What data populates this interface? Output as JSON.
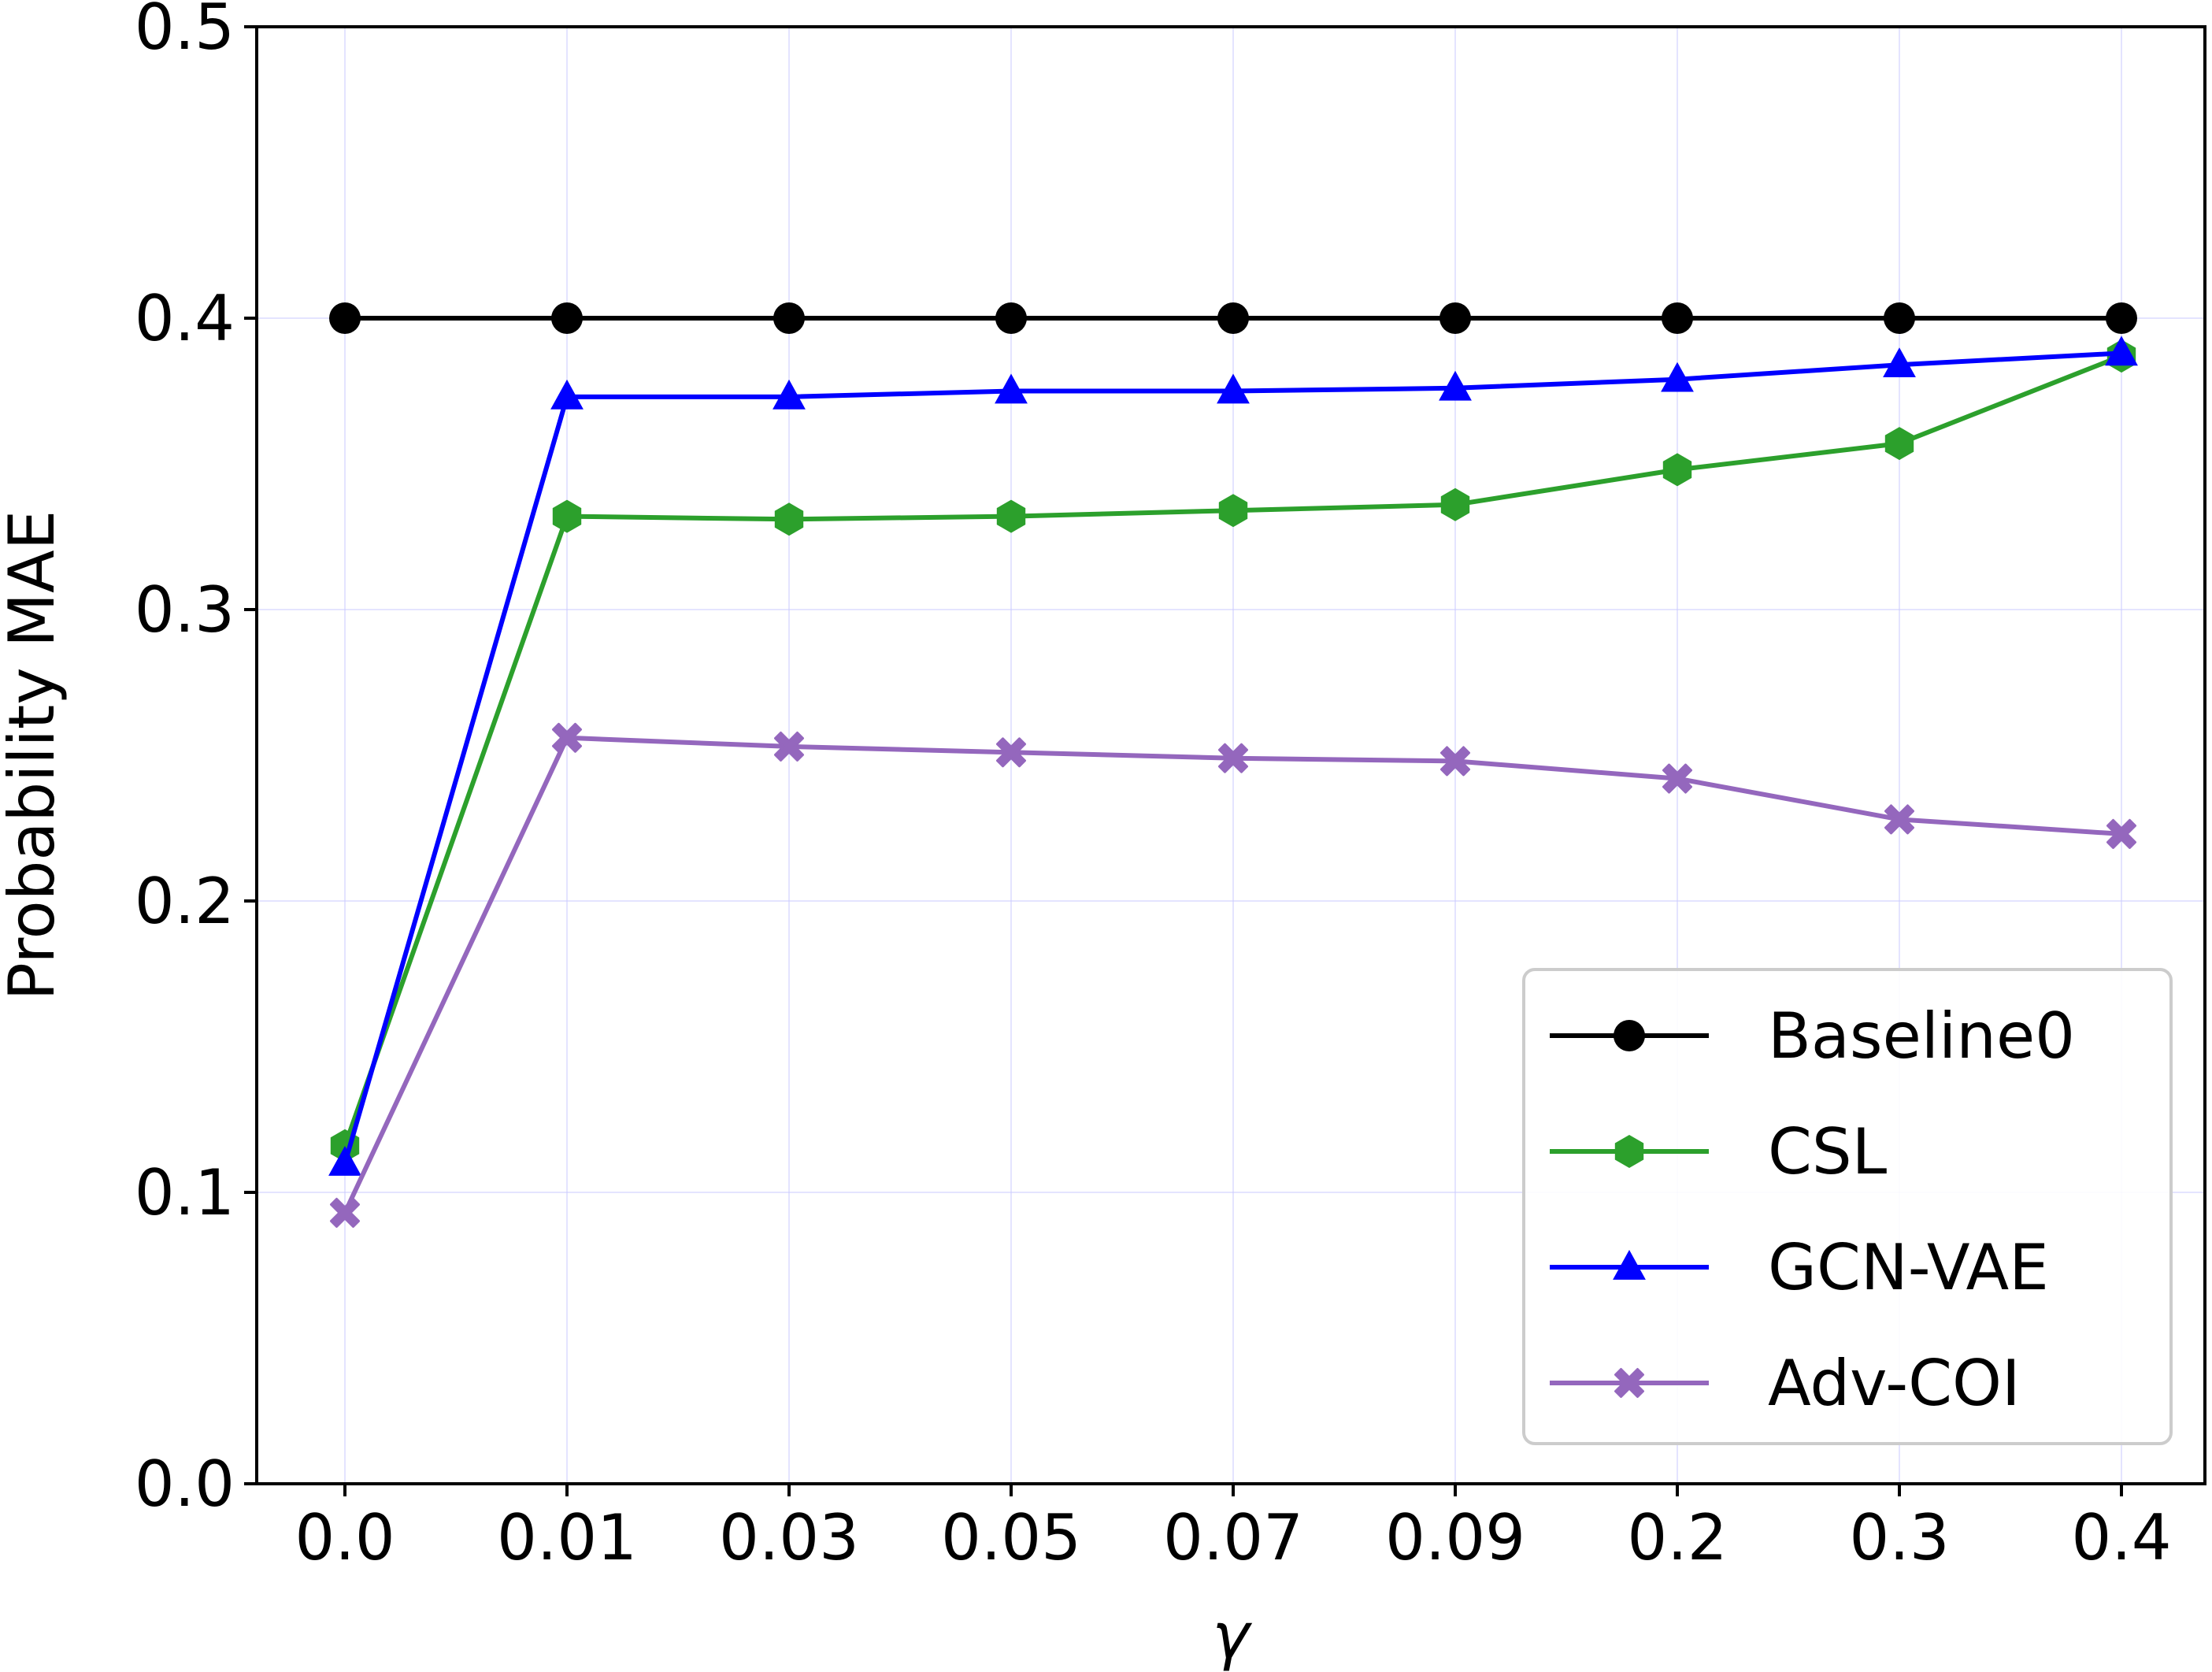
{
  "chart_data": {
    "type": "line",
    "title": "",
    "xlabel": "γ",
    "ylabel": "Probability MAE",
    "categories": [
      "0.0",
      "0.01",
      "0.03",
      "0.05",
      "0.07",
      "0.09",
      "0.2",
      "0.3",
      "0.4"
    ],
    "ylim": [
      0.0,
      0.5
    ],
    "yticks": [
      "0.0",
      "0.1",
      "0.2",
      "0.3",
      "0.4",
      "0.5"
    ],
    "grid": true,
    "legend_position": "lower-right",
    "series": [
      {
        "name": "Baseline0",
        "color": "#000000",
        "marker": "circle",
        "values": [
          0.4,
          0.4,
          0.4,
          0.4,
          0.4,
          0.4,
          0.4,
          0.4,
          0.4
        ]
      },
      {
        "name": "CSL",
        "color": "#2ca02c",
        "marker": "hexagon",
        "values": [
          0.116,
          0.332,
          0.331,
          0.332,
          0.334,
          0.336,
          0.348,
          0.357,
          0.387
        ]
      },
      {
        "name": "GCN-VAE",
        "color": "#0000ff",
        "marker": "triangle",
        "values": [
          0.11,
          0.373,
          0.373,
          0.375,
          0.375,
          0.376,
          0.379,
          0.384,
          0.388
        ]
      },
      {
        "name": "Adv-COI",
        "color": "#9467bd",
        "marker": "x-filled",
        "values": [
          0.093,
          0.256,
          0.253,
          0.251,
          0.249,
          0.248,
          0.242,
          0.228,
          0.223
        ]
      }
    ]
  }
}
